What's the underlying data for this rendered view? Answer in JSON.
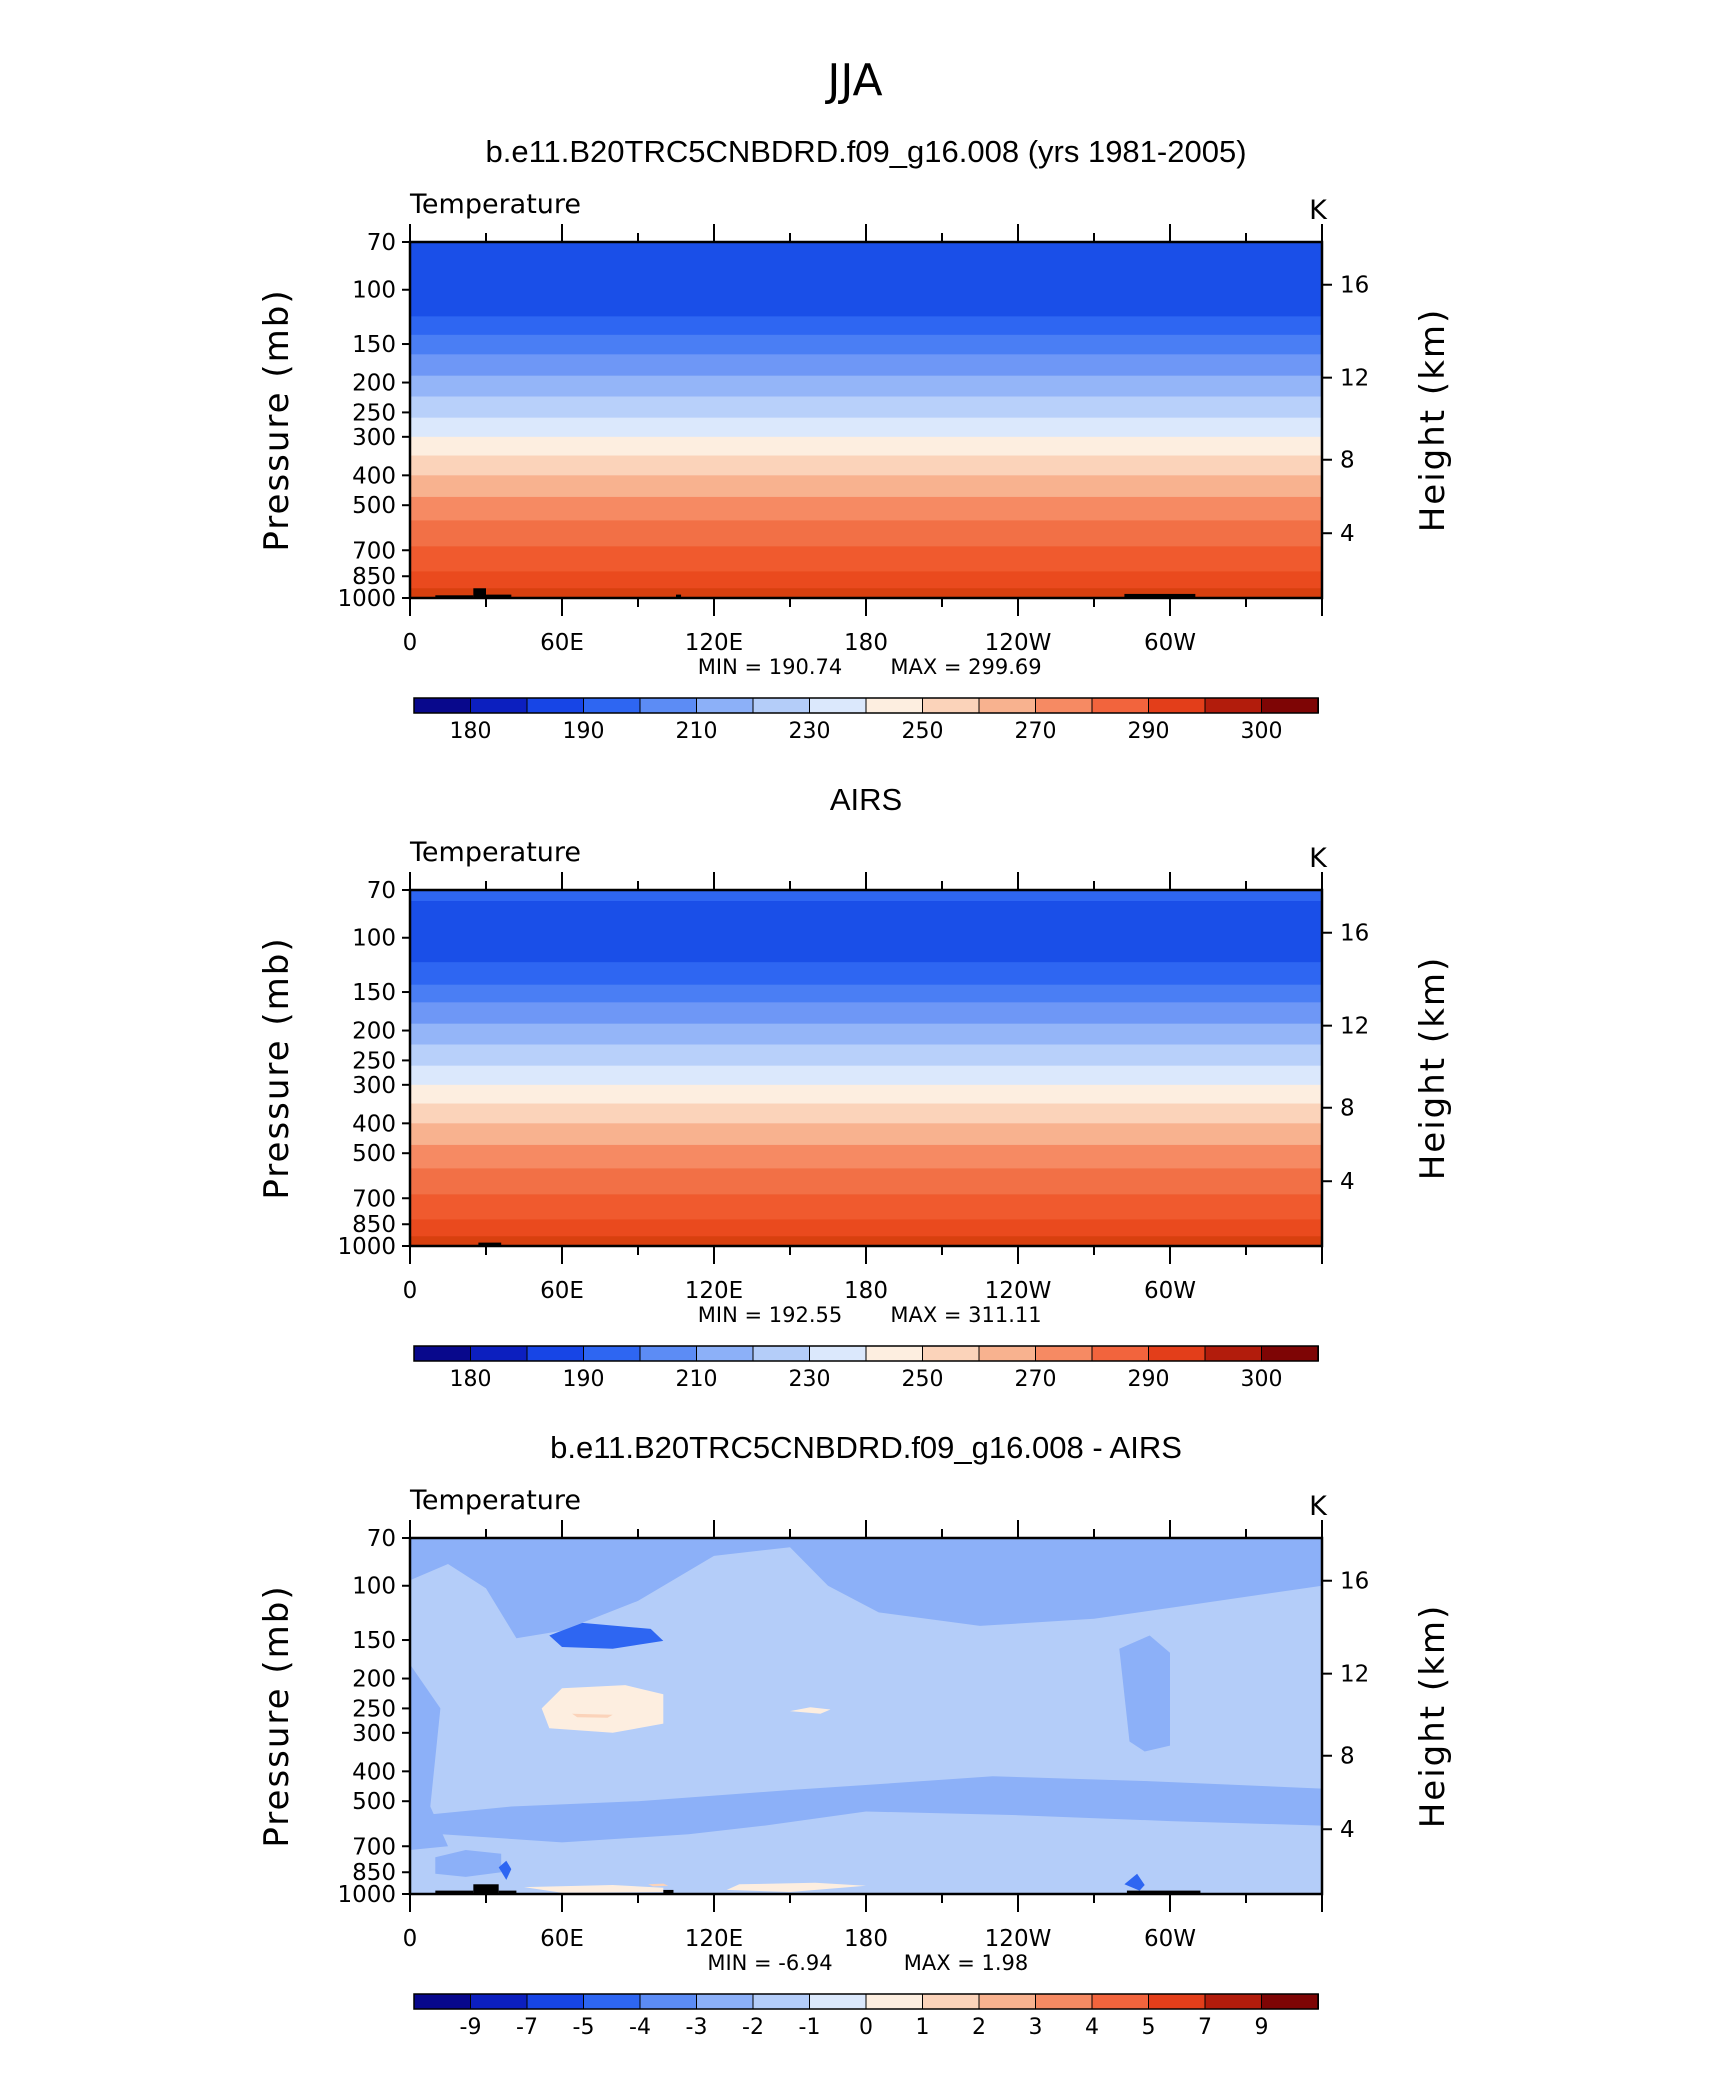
{
  "figure": {
    "title": "JJA",
    "colors": {
      "standard_palette": [
        "#08088c",
        "#0c1fbf",
        "#1745e6",
        "#2e66f2",
        "#5c8cf5",
        "#8cb0f8",
        "#b4cdf9",
        "#dbe8fc",
        "#fdeee0",
        "#fbd3ba",
        "#f8b28f",
        "#f68a63",
        "#f2643d",
        "#e33e1a",
        "#b21c0c",
        "#7e0505"
      ],
      "diff_palette": [
        "#08088c",
        "#0c1fbf",
        "#1745e6",
        "#2e66f2",
        "#5c8cf5",
        "#8cb0f8",
        "#b4cdf9",
        "#dbe8fc",
        "#fdeee0",
        "#fbd3ba",
        "#f8b28f",
        "#f68a63",
        "#f2643d",
        "#e33e1a",
        "#b21c0c",
        "#7e0505"
      ],
      "terrain": "#000000"
    }
  },
  "chart_data": [
    {
      "type": "heatmap",
      "title": "b.e11.B20TRC5CNBDRD.f09_g16.008 (yrs 1981-2005)",
      "variable_label": "Temperature",
      "units": "K",
      "ylabel": "Pressure (mb)",
      "ylabel_right": "Height (km)",
      "yscale": "log",
      "ylim": [
        1000,
        70
      ],
      "y_ticks": [
        70,
        100,
        150,
        200,
        250,
        300,
        400,
        500,
        700,
        850,
        1000
      ],
      "y_right_ticks": [
        4,
        8,
        12,
        16
      ],
      "xlim": [
        0,
        360
      ],
      "x_ticks": [
        "0",
        "60E",
        "120E",
        "180",
        "120W",
        "60W"
      ],
      "x_tick_values": [
        0,
        60,
        120,
        180,
        240,
        300
      ],
      "min_label": "MIN = 190.74",
      "max_label": "MAX = 299.69",
      "min": 190.74,
      "max": 299.69,
      "colorbar_labels": [
        "180",
        "190",
        "210",
        "230",
        "250",
        "270",
        "290",
        "300"
      ],
      "colorbar_levels": [
        175,
        180,
        185,
        190,
        200,
        210,
        220,
        230,
        240,
        250,
        260,
        270,
        280,
        290,
        295,
        300
      ],
      "band_pressures": [
        70,
        100,
        122,
        140,
        162,
        190,
        222,
        260,
        300,
        345,
        400,
        470,
        560,
        680,
        820,
        930,
        1000
      ],
      "band_levels": [
        7,
        6,
        5,
        4,
        3,
        3,
        2,
        1,
        0,
        0,
        0,
        0,
        0,
        0,
        0,
        0
      ],
      "band_colors": [
        "#1a4fe8",
        "#1a4fe8",
        "#2e66f2",
        "#4a7ef4",
        "#6e97f6",
        "#94b5f8",
        "#b8d0fa",
        "#dbe8fc",
        "#fdeee0",
        "#fbd3ba",
        "#f8b28f",
        "#f68a63",
        "#f27046",
        "#f05a2e",
        "#ea4a1e",
        "#d8400f"
      ],
      "terrain": [
        [
          10,
          25,
          1000,
          980
        ],
        [
          25,
          30,
          1000,
          930
        ],
        [
          30,
          40,
          1000,
          975
        ],
        [
          105,
          107,
          1000,
          975
        ],
        [
          282,
          310,
          1000,
          970
        ]
      ]
    },
    {
      "type": "heatmap",
      "title": "AIRS",
      "variable_label": "Temperature",
      "units": "K",
      "ylabel": "Pressure (mb)",
      "ylabel_right": "Height (km)",
      "yscale": "log",
      "ylim": [
        1000,
        70
      ],
      "y_ticks": [
        70,
        100,
        150,
        200,
        250,
        300,
        400,
        500,
        700,
        850,
        1000
      ],
      "y_right_ticks": [
        4,
        8,
        12,
        16
      ],
      "xlim": [
        0,
        360
      ],
      "x_ticks": [
        "0",
        "60E",
        "120E",
        "180",
        "120W",
        "60W"
      ],
      "x_tick_values": [
        0,
        60,
        120,
        180,
        240,
        300
      ],
      "min_label": "MIN = 192.55",
      "max_label": "MAX = 311.11",
      "min": 192.55,
      "max": 311.11,
      "colorbar_labels": [
        "180",
        "190",
        "210",
        "230",
        "250",
        "270",
        "290",
        "300"
      ],
      "colorbar_levels": [
        175,
        180,
        185,
        190,
        200,
        210,
        220,
        230,
        240,
        250,
        260,
        270,
        280,
        290,
        295,
        300
      ],
      "band_pressures": [
        70,
        76,
        120,
        142,
        162,
        190,
        222,
        260,
        300,
        345,
        400,
        470,
        560,
        680,
        820,
        930,
        1000
      ],
      "band_colors": [
        "#2e66f2",
        "#1a4fe8",
        "#2e66f2",
        "#4a7ef4",
        "#6e97f6",
        "#94b5f8",
        "#b8d0fa",
        "#dbe8fc",
        "#fdeee0",
        "#fbd3ba",
        "#f8b28f",
        "#f68a63",
        "#f27046",
        "#f05a2e",
        "#ea4a1e",
        "#d8400f"
      ],
      "terrain": [
        [
          27,
          36,
          1000,
          975
        ]
      ]
    },
    {
      "type": "heatmap",
      "title": "b.e11.B20TRC5CNBDRD.f09_g16.008 - AIRS",
      "variable_label": "Temperature",
      "units": "K",
      "ylabel": "Pressure (mb)",
      "ylabel_right": "Height (km)",
      "yscale": "log",
      "ylim": [
        1000,
        70
      ],
      "y_ticks": [
        70,
        100,
        150,
        200,
        250,
        300,
        400,
        500,
        700,
        850,
        1000
      ],
      "y_right_ticks": [
        4,
        8,
        12,
        16
      ],
      "xlim": [
        0,
        360
      ],
      "x_ticks": [
        "0",
        "60E",
        "120E",
        "180",
        "120W",
        "60W"
      ],
      "x_tick_values": [
        0,
        60,
        120,
        180,
        240,
        300
      ],
      "min_label": "MIN = -6.94",
      "max_label": "MAX = 1.98",
      "min": -6.94,
      "max": 1.98,
      "colorbar_labels": [
        "-9",
        "-7",
        "-5",
        "-4",
        "-3",
        "-2",
        "-1",
        "0",
        "1",
        "2",
        "3",
        "4",
        "5",
        "7",
        "9"
      ],
      "colorbar_levels": [
        -9,
        -7,
        -5,
        -4,
        -3,
        -2,
        -1,
        0,
        1,
        2,
        3,
        4,
        5,
        7,
        9
      ],
      "background_value": -1.5,
      "regions": [
        {
          "value": -2.5,
          "points": [
            [
              0,
              70
            ],
            [
              360,
              70
            ],
            [
              360,
              100
            ],
            [
              300,
              118
            ],
            [
              270,
              128
            ],
            [
              225,
              135
            ],
            [
              185,
              122
            ],
            [
              165,
              100
            ],
            [
              150,
              75
            ],
            [
              120,
              80
            ],
            [
              90,
              112
            ],
            [
              60,
              140
            ],
            [
              42,
              148
            ],
            [
              30,
              102
            ],
            [
              15,
              85
            ],
            [
              0,
              96
            ]
          ]
        },
        {
          "value": -2.5,
          "points": [
            [
              0,
              180
            ],
            [
              12,
              250
            ],
            [
              8,
              520
            ],
            [
              15,
              700
            ],
            [
              0,
              720
            ]
          ]
        },
        {
          "value": -2.5,
          "points": [
            [
              150,
              460
            ],
            [
              185,
              440
            ],
            [
              230,
              415
            ],
            [
              290,
              430
            ],
            [
              360,
              455
            ],
            [
              360,
              600
            ],
            [
              300,
              580
            ],
            [
              240,
              555
            ],
            [
              180,
              540
            ],
            [
              140,
              600
            ],
            [
              110,
              640
            ],
            [
              60,
              680
            ],
            [
              0,
              630
            ],
            [
              0,
              560
            ],
            [
              40,
              520
            ],
            [
              90,
              500
            ]
          ]
        },
        {
          "value": -2.5,
          "points": [
            [
              10,
              760
            ],
            [
              22,
              720
            ],
            [
              36,
              740
            ],
            [
              36,
              850
            ],
            [
              22,
              880
            ],
            [
              10,
              860
            ]
          ]
        },
        {
          "value": -2.5,
          "points": [
            [
              280,
              160
            ],
            [
              292,
              145
            ],
            [
              300,
              165
            ],
            [
              300,
              330
            ],
            [
              290,
              345
            ],
            [
              284,
              320
            ]
          ]
        },
        {
          "value": -4.5,
          "points": [
            [
              55,
              145
            ],
            [
              68,
              132
            ],
            [
              95,
              138
            ],
            [
              100,
              151
            ],
            [
              80,
              160
            ],
            [
              60,
              158
            ]
          ]
        },
        {
          "value": -4.5,
          "points": [
            [
              282,
              930
            ],
            [
              287,
              860
            ],
            [
              290,
              935
            ],
            [
              288,
              975
            ]
          ]
        },
        {
          "value": -4.5,
          "points": [
            [
              35,
              820
            ],
            [
              38,
              780
            ],
            [
              40,
              830
            ],
            [
              38,
              900
            ]
          ]
        },
        {
          "value": 0.5,
          "points": [
            [
              52,
              250
            ],
            [
              60,
              215
            ],
            [
              85,
              210
            ],
            [
              100,
              225
            ],
            [
              100,
              280
            ],
            [
              80,
              300
            ],
            [
              55,
              290
            ]
          ]
        },
        {
          "value": 0.5,
          "points": [
            [
              150,
              255
            ],
            [
              158,
              248
            ],
            [
              166,
              252
            ],
            [
              162,
              260
            ]
          ]
        },
        {
          "value": 0.5,
          "points": [
            [
              45,
              950
            ],
            [
              80,
              935
            ],
            [
              100,
              955
            ],
            [
              100,
              985
            ],
            [
              60,
              990
            ]
          ]
        },
        {
          "value": 0.5,
          "points": [
            [
              130,
              930
            ],
            [
              160,
              920
            ],
            [
              180,
              940
            ],
            [
              150,
              985
            ],
            [
              125,
              970
            ]
          ]
        },
        {
          "value": 1.5,
          "points": [
            [
              64,
              260
            ],
            [
              80,
              262
            ],
            [
              78,
              268
            ],
            [
              66,
              267
            ]
          ]
        },
        {
          "value": 1.5,
          "points": [
            [
              94,
              930
            ],
            [
              100,
              925
            ],
            [
              102,
              940
            ],
            [
              96,
              945
            ]
          ]
        }
      ],
      "terrain": [
        [
          10,
          25,
          1000,
          975
        ],
        [
          25,
          35,
          1000,
          930
        ],
        [
          35,
          42,
          1000,
          975
        ],
        [
          100,
          104,
          1000,
          970
        ],
        [
          283,
          312,
          1000,
          975
        ]
      ]
    }
  ]
}
